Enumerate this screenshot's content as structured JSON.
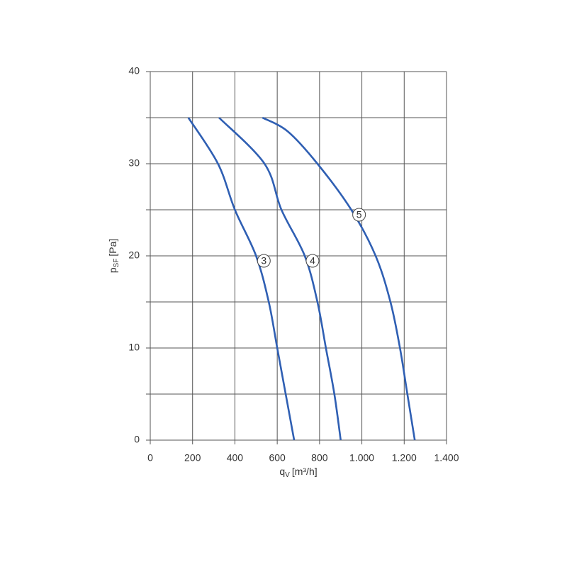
{
  "chart_data": {
    "type": "line",
    "ylabel": {
      "symbol": "p",
      "subscript": "SF",
      "unit": "[Pa]"
    },
    "xlabel": {
      "symbol": "q",
      "subscript": "V",
      "unit": "[m³/h]"
    },
    "xlim": [
      0,
      1400
    ],
    "xticks": [
      0,
      200,
      400,
      600,
      800,
      {
        "value": 1000,
        "label": "1.000"
      },
      {
        "value": 1200,
        "label": "1.200"
      },
      {
        "value": 1400,
        "label": "1.400"
      }
    ],
    "ylim": [
      0,
      40
    ],
    "yticks": [
      0,
      10,
      20,
      30,
      40
    ],
    "y_minor_gridlines": [
      5,
      15,
      25,
      35
    ],
    "grid": true,
    "series": [
      {
        "name": "3",
        "color": "#2f5fb3",
        "x": [
          180,
          320,
          400,
          500,
          560,
          600,
          640,
          680
        ],
        "values": [
          35,
          30,
          25,
          20,
          15,
          10,
          5,
          0
        ]
      },
      {
        "name": "4",
        "color": "#2f5fb3",
        "x": [
          325,
          540,
          620,
          730,
          790,
          830,
          870,
          900
        ],
        "values": [
          35,
          30,
          25,
          20,
          15,
          10,
          5,
          0
        ]
      },
      {
        "name": "5",
        "color": "#2f5fb3",
        "x": [
          530,
          650,
          790,
          950,
          1065,
          1135,
          1180,
          1215,
          1250
        ],
        "values": [
          35,
          33.5,
          30,
          25,
          20,
          15,
          10,
          5,
          0
        ]
      }
    ]
  }
}
